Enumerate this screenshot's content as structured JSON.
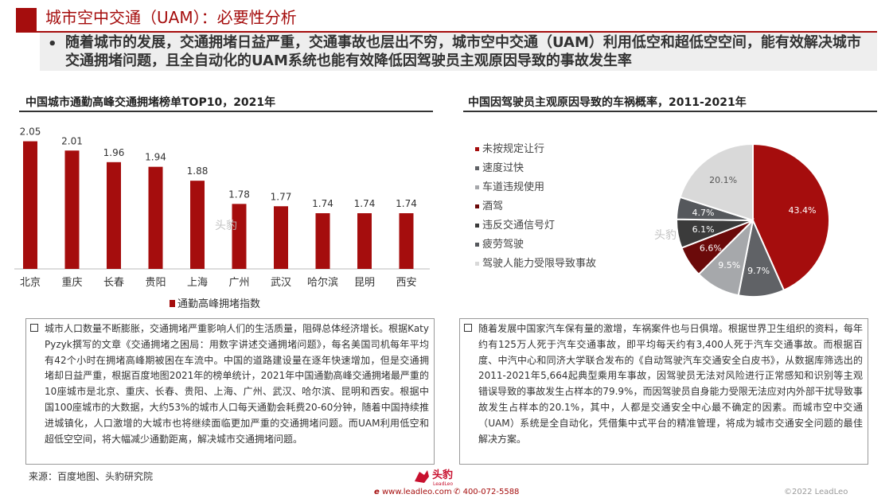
{
  "header": {
    "title": "城市空中交通（UAM）：必要性分析",
    "summary": "随着城市的发展，交通拥堵日益严重，交通事故也层出不穷，城市空中交通（UAM）利用低空和超低空空间，能有效解决城市交通拥堵问题，且全自动化的UAM系统也能有效降低因驾驶员主观原因导致的事故发生率"
  },
  "left_chart": {
    "title": "中国城市通勤高峰交通拥堵榜单TOP10，2021年",
    "legend": "通勤高峰拥堵指数",
    "bar_color": "#a50d0d"
  },
  "right_chart": {
    "title": "中国因驾驶员主观原因导致的车祸概率，2011-2021年"
  },
  "chart_data": [
    {
      "type": "bar",
      "categories": [
        "北京",
        "重庆",
        "长春",
        "贵阳",
        "上海",
        "广州",
        "武汉",
        "哈尔滨",
        "昆明",
        "西安"
      ],
      "values": [
        2.05,
        2.01,
        1.96,
        1.94,
        1.88,
        1.78,
        1.77,
        1.74,
        1.74,
        1.74
      ],
      "value_labels": [
        "2.05",
        "2.01",
        "1.96",
        "1.94",
        "1.88",
        "1.78",
        "1.77",
        "1.74",
        "1.74",
        "1.74"
      ],
      "series": [
        {
          "name": "通勤高峰拥堵指数",
          "values": [
            2.05,
            2.01,
            1.96,
            1.94,
            1.88,
            1.78,
            1.77,
            1.74,
            1.74,
            1.74
          ]
        }
      ],
      "ylim": [
        1.5,
        2.1
      ],
      "grid": false,
      "legend_position": "bottom"
    },
    {
      "type": "pie",
      "legend_position": "left",
      "slices": [
        {
          "label": "未按规定让行",
          "value": 43.4,
          "display": "43.4%",
          "color": "#a50d0d"
        },
        {
          "label": "速度过快",
          "value": 9.7,
          "display": "9.7%",
          "color": "#606266"
        },
        {
          "label": "车道违规使用",
          "value": 9.5,
          "display": "9.5%",
          "color": "#a6a8ab"
        },
        {
          "label": "酒驾",
          "value": 6.6,
          "display": "6.6%",
          "color": "#6b0a0a"
        },
        {
          "label": "违反交通信号灯",
          "value": 6.1,
          "display": "6.1%",
          "color": "#3b3b3b"
        },
        {
          "label": "疲劳驾驶",
          "value": 4.7,
          "display": "4.7%",
          "color": "#55585c"
        },
        {
          "label": "驾驶人能力受限导致事故",
          "value": 20.1,
          "display": "20.1%",
          "color": "#d9d9d9"
        }
      ]
    }
  ],
  "notes": {
    "left": "城市人口数量不断膨胀，交通拥堵严重影响人们的生活质量，阻碍总体经济增长。根据Katy Pyzyk撰写的文章《交通拥堵之困局：用数字讲述交通拥堵问题》，每名美国司机每年平均有42个小时在拥堵高峰期被困在车流中。中国的道路建设量在逐年快速增加，但是交通拥堵却日益严重，根据百度地图2021年的榜单统计，2021年中国通勤高峰交通拥堵最严重的10座城市是北京、重庆、长春、贵阳、上海、广州、武汉、哈尔滨、昆明和西安。根据中国100座城市的大数据，大约53%的城市人口每天通勤会耗费20-60分钟，随着中国持续推进城镇化，人口激增的大城市也将继续面临更加严重的交通拥堵问题。而UAM利用低空和超低空空间，将大幅减少通勤距离，解决城市交通拥堵问题。",
    "right": "随着发展中国家汽车保有量的激增，车祸案件也与日俱增。根据世界卫生组织的资料，每年约有125万人死于汽车交通事故，即平均每天约有3,400人死于汽车交通事故。而根据百度、中汽中心和同济大学联合发布的《自动驾驶汽车交通安全白皮书》，从数据库筛选出的2011-2021年5,664起典型乘用车事故，因驾驶员无法对风险进行正常感知和识别等主观错误导致的事故发生占样本的79.9%，而因驾驶员自身能力受限无法应对内外部干扰导致事故发生占样本的20.1%，其中，人都是交通安全中心最不确定的因素。而城市空中交通（UAM）系统是全自动化，凭借集中式平台的精准管理，将成为城市交通安全问题的最佳解决方案。"
  },
  "source": "来源：百度地图、头豹研究院",
  "footer": {
    "logo_text": "头豹",
    "logo_sub": "LeadLeo",
    "website": "www.leadleo.com",
    "phone": "400-072-5588",
    "copyright": "©2022 LeadLeo"
  },
  "watermark": "头豹",
  "icons": {
    "website": "e-icon",
    "phone": "phone-icon",
    "bullet": "checkbox-icon"
  }
}
